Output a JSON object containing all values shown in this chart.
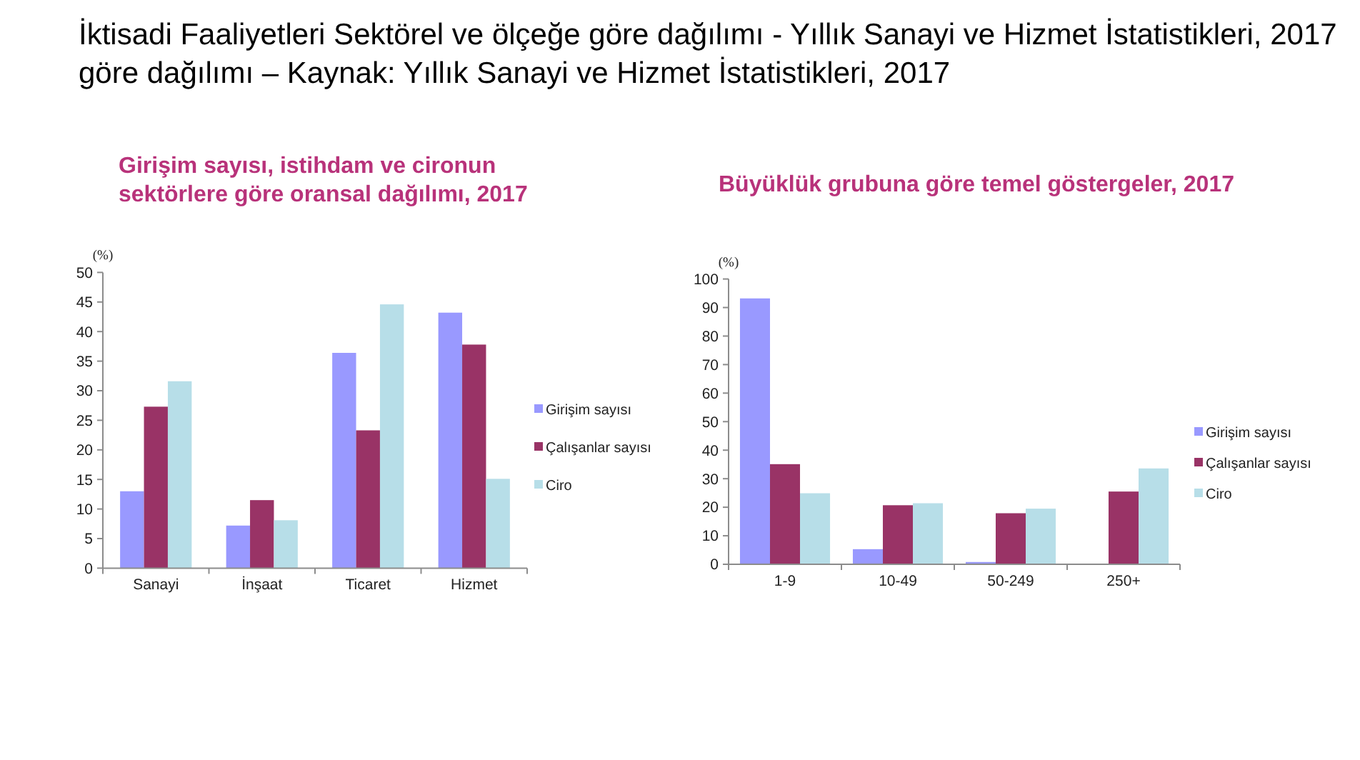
{
  "chart_data": [
    {
      "type": "other",
      "title": "İktisadi Faaliyetleri Sektörel ve ölçeğe göre dağılımı - Yıllık Sanayi ve Hizmet İstatistikleri, 2017",
      "subtitle": "göre dağılımı – Kaynak: Yıllık Sanayi ve Hizmet İstatistikleri, 2017"
    },
    {
      "type": "bar",
      "title": "Girişim sayısı, istihdam ve cironun sektörlere göre oransal dağılımı, 2017",
      "ylabel": "(%)",
      "categories": [
        "Sanayi",
        "İnşaat",
        "Ticaret",
        "Hizmet"
      ],
      "series": [
        {
          "name": "Girişim sayısı",
          "color": "#9999ff",
          "values": [
            13,
            7.2,
            36.4,
            43.2
          ]
        },
        {
          "name": "Çalışanlar sayısı",
          "color": "#993366",
          "values": [
            27.3,
            11.5,
            23.3,
            37.8
          ]
        },
        {
          "name": "Ciro",
          "color": "#b7dee8",
          "values": [
            31.6,
            8.1,
            44.6,
            15.1
          ]
        }
      ],
      "ylim": [
        0,
        50
      ],
      "yticks": [
        0,
        5,
        10,
        15,
        20,
        25,
        30,
        35,
        40,
        45,
        50
      ],
      "legend": "right"
    },
    {
      "type": "bar",
      "title": "Büyüklük grubuna göre temel göstergeler, 2017",
      "ylabel": "(%)",
      "categories": [
        "1-9",
        "10-49",
        "50-249",
        "250+"
      ],
      "series": [
        {
          "name": "Girişim sayısı",
          "color": "#9999ff",
          "values": [
            93.2,
            5.3,
            0.8,
            0
          ]
        },
        {
          "name": "Çalışanlar sayısı",
          "color": "#993366",
          "values": [
            35.1,
            20.7,
            17.9,
            25.5
          ]
        },
        {
          "name": "Ciro",
          "color": "#b7dee8",
          "values": [
            24.9,
            21.4,
            19.5,
            33.6
          ]
        }
      ],
      "ylim": [
        0,
        100
      ],
      "yticks": [
        0,
        10,
        20,
        30,
        40,
        50,
        60,
        70,
        80,
        90,
        100
      ],
      "legend": "right"
    }
  ]
}
